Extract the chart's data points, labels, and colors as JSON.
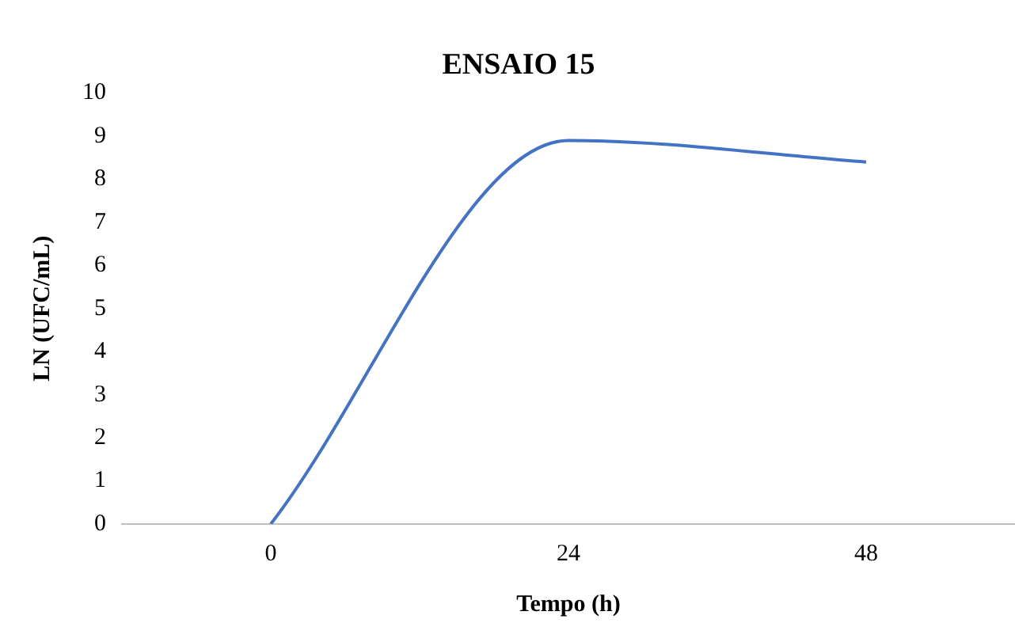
{
  "chart_data": {
    "type": "line",
    "title": "ENSAIO 15",
    "xlabel": "Tempo (h)",
    "ylabel": "LN (UFC/mL)",
    "categories": [
      "0",
      "24",
      "48"
    ],
    "series": [
      {
        "color": "#4472c4",
        "values": [
          0,
          8.9,
          8.4
        ]
      }
    ],
    "ylim": [
      0,
      10
    ],
    "yticks": [
      0,
      1,
      2,
      3,
      4,
      5,
      6,
      7,
      8,
      9,
      10
    ],
    "grid": false,
    "legend": false,
    "marker": "none",
    "line_style": "solid"
  }
}
